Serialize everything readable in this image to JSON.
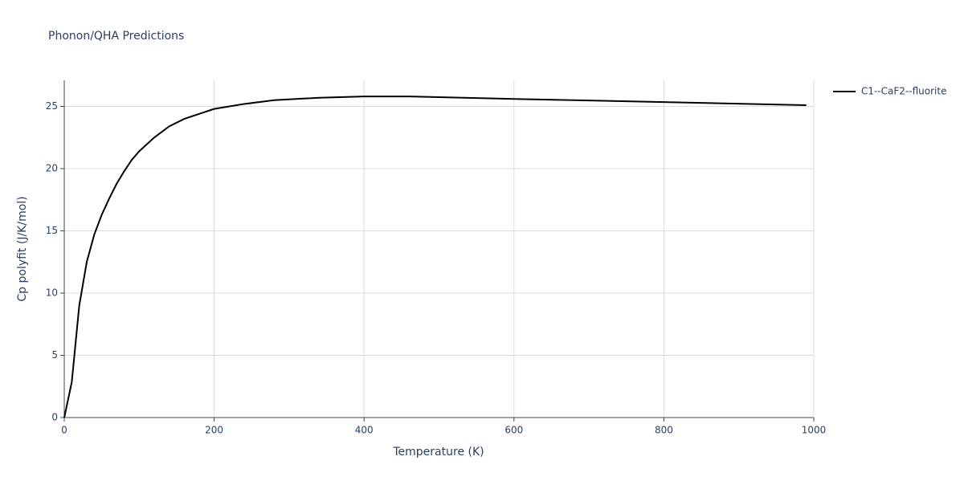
{
  "chart_data": {
    "type": "line",
    "title": "Phonon/QHA Predictions",
    "x_label": "Temperature (K)",
    "y_label": "Cp polyfit (J/K/mol)",
    "x": [
      0,
      10,
      20,
      30,
      40,
      50,
      60,
      70,
      80,
      90,
      100,
      120,
      140,
      160,
      180,
      200,
      240,
      280,
      340,
      400,
      460,
      600,
      800,
      990
    ],
    "series": [
      {
        "name": "C1--CaF2--fluorite",
        "color": "#000000",
        "values": [
          0,
          2.84,
          9.0,
          12.5,
          14.7,
          16.3,
          17.6,
          18.8,
          19.8,
          20.7,
          21.4,
          22.5,
          23.4,
          24.0,
          24.4,
          24.8,
          25.2,
          25.5,
          25.7,
          25.8,
          25.8,
          25.6,
          25.35,
          25.1
        ]
      }
    ],
    "xlim": [
      0,
      1000
    ],
    "xticks": [
      0,
      200,
      400,
      600,
      800,
      1000
    ],
    "ylim": [
      0,
      27.1
    ],
    "yticks": [
      0,
      5,
      10,
      15,
      20,
      25
    ],
    "grid": true,
    "legend": "top-right"
  }
}
